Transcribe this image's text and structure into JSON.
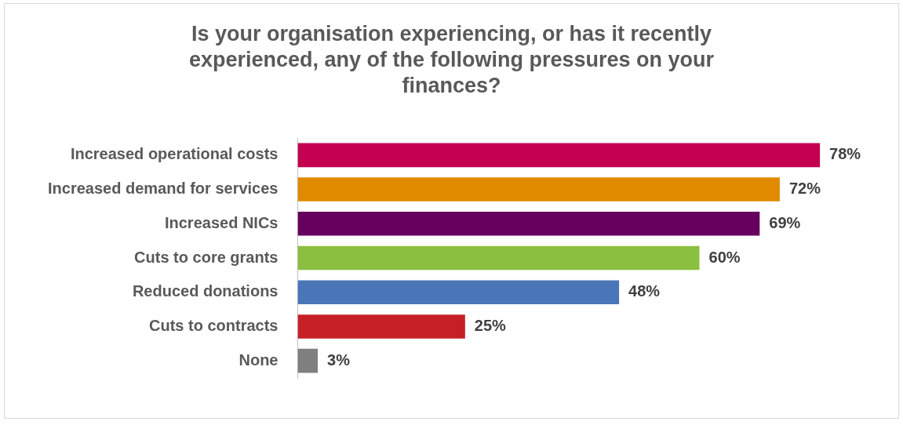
{
  "chart_data": {
    "type": "bar",
    "orientation": "horizontal",
    "title": "Is your organisation experiencing, or has it recently experienced, any of the following pressures on your finances?",
    "categories": [
      "Increased operational costs",
      "Increased demand for services",
      "Increased NICs",
      "Cuts to core grants",
      "Reduced donations",
      "Cuts to contracts",
      "None"
    ],
    "values": [
      78,
      72,
      69,
      60,
      48,
      25,
      3
    ],
    "colors": [
      "#c2004f",
      "#e08a00",
      "#66005f",
      "#8bbf3f",
      "#4a76b8",
      "#c42026",
      "#7f7f7f"
    ],
    "value_labels": [
      "78%",
      "72%",
      "69%",
      "60%",
      "48%",
      "25%",
      "3%"
    ],
    "legend": false
  }
}
